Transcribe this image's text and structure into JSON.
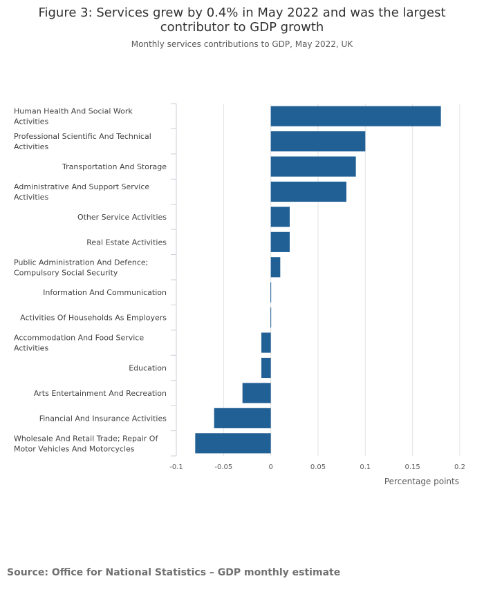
{
  "figure": {
    "title": "Figure 3: Services grew by 0.4% in May 2022 and was the largest contributor to GDP growth",
    "subtitle": "Monthly services contributions to GDP, May 2022, UK",
    "source": "Source: Office for National Statistics – GDP monthly estimate"
  },
  "chart_data": {
    "type": "bar",
    "orientation": "horizontal",
    "xlabel": "Percentage points",
    "ylabel": "",
    "xlim": [
      -0.1,
      0.2
    ],
    "xticks": [
      -0.1,
      -0.05,
      0,
      0.05,
      0.1,
      0.15,
      0.2
    ],
    "xtick_labels": [
      "-0.1",
      "-0.05",
      "0",
      "0.05",
      "0.1",
      "0.15",
      "0.2"
    ],
    "grid": true,
    "bar_color": "#206095",
    "categories": [
      "Human Health And Social Work Activities",
      "Professional Scientific And Technical Activities",
      "Transportation And Storage",
      "Administrative And Support Service Activities",
      "Other Service Activities",
      "Real Estate Activities",
      "Public Administration And Defence; Compulsory Social Security",
      "Information And Communication",
      "Activities Of Households As Employers",
      "Accommodation And Food Service Activities",
      "Education",
      "Arts Entertainment And Recreation",
      "Financial And Insurance Activities",
      "Wholesale And Retail Trade; Repair Of Motor Vehicles And Motorcycles"
    ],
    "values": [
      0.18,
      0.1,
      0.09,
      0.08,
      0.02,
      0.02,
      0.01,
      0.0,
      0.0,
      -0.01,
      -0.01,
      -0.03,
      -0.06,
      -0.08
    ]
  }
}
